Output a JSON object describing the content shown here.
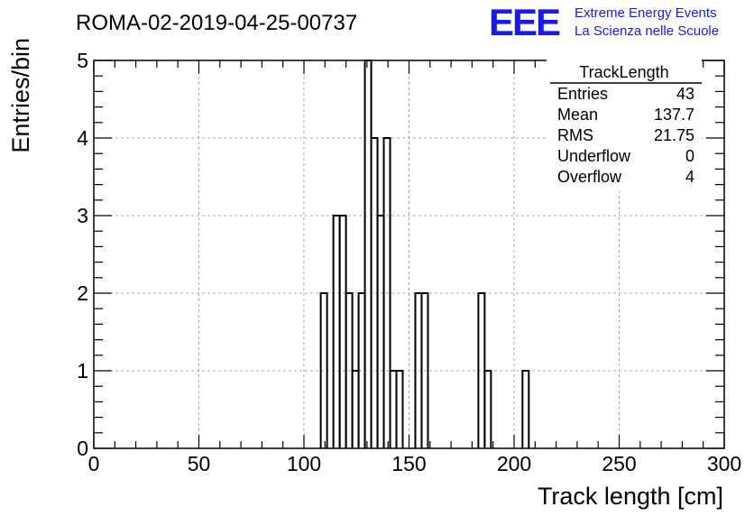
{
  "run_title": "ROMA-02-2019-04-25-00737",
  "logo": {
    "mark": "EEE",
    "line1": "Extreme Energy Events",
    "line2": "La Scienza nelle Scuole",
    "color": "#1a1aee"
  },
  "stats_box": {
    "title": "TrackLength",
    "rows": [
      {
        "label": "Entries",
        "value": "43"
      },
      {
        "label": "Mean",
        "value": "137.7"
      },
      {
        "label": "RMS",
        "value": "21.75"
      },
      {
        "label": "Underflow",
        "value": "0"
      },
      {
        "label": "Overflow",
        "value": "4"
      }
    ]
  },
  "chart_data": {
    "type": "bar",
    "title": "ROMA-02-2019-04-25-00737",
    "xlabel": "Track length [cm]",
    "ylabel": "Entries/bin",
    "xlim": [
      0,
      300
    ],
    "ylim": [
      0,
      5
    ],
    "bin_width": 3,
    "x_ticks": [
      0,
      50,
      100,
      150,
      200,
      250,
      300
    ],
    "y_ticks": [
      0,
      1,
      2,
      3,
      4,
      5
    ],
    "grid": true,
    "line_color": "#000000",
    "bins": [
      {
        "x": 108,
        "value": 2
      },
      {
        "x": 114,
        "value": 3
      },
      {
        "x": 117,
        "value": 3
      },
      {
        "x": 120,
        "value": 2
      },
      {
        "x": 123,
        "value": 1
      },
      {
        "x": 126,
        "value": 2
      },
      {
        "x": 129,
        "value": 5
      },
      {
        "x": 132,
        "value": 4
      },
      {
        "x": 135,
        "value": 3
      },
      {
        "x": 138,
        "value": 4
      },
      {
        "x": 141,
        "value": 1
      },
      {
        "x": 144,
        "value": 1
      },
      {
        "x": 153,
        "value": 2
      },
      {
        "x": 156,
        "value": 2
      },
      {
        "x": 183,
        "value": 2
      },
      {
        "x": 186,
        "value": 1
      },
      {
        "x": 204,
        "value": 1
      }
    ]
  }
}
